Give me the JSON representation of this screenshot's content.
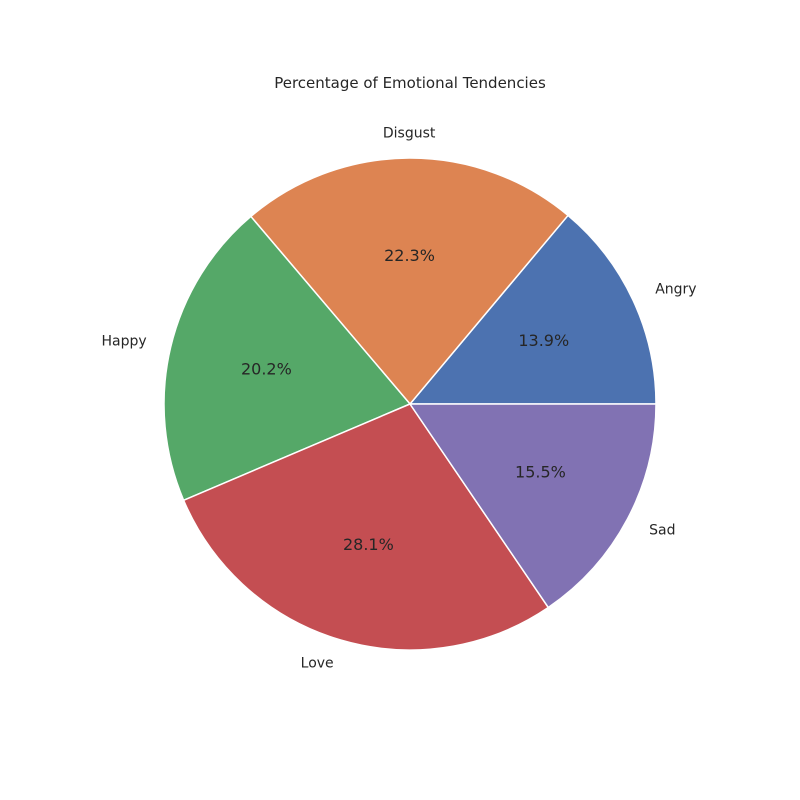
{
  "chart_data": {
    "type": "pie",
    "title": "Percentage of Emotional Tendencies",
    "categories": [
      "Angry",
      "Disgust",
      "Happy",
      "Love",
      "Sad"
    ],
    "values": [
      13.9,
      22.3,
      20.2,
      28.1,
      15.5
    ],
    "value_labels": [
      "13.9%",
      "22.3%",
      "20.2%",
      "28.1%",
      "15.5%"
    ],
    "colors": [
      "#4c72b0",
      "#dd8452",
      "#55a868",
      "#c44e52",
      "#8172b3"
    ],
    "start_angle_deg": 0,
    "direction": "counterclockwise",
    "legend": "none"
  }
}
